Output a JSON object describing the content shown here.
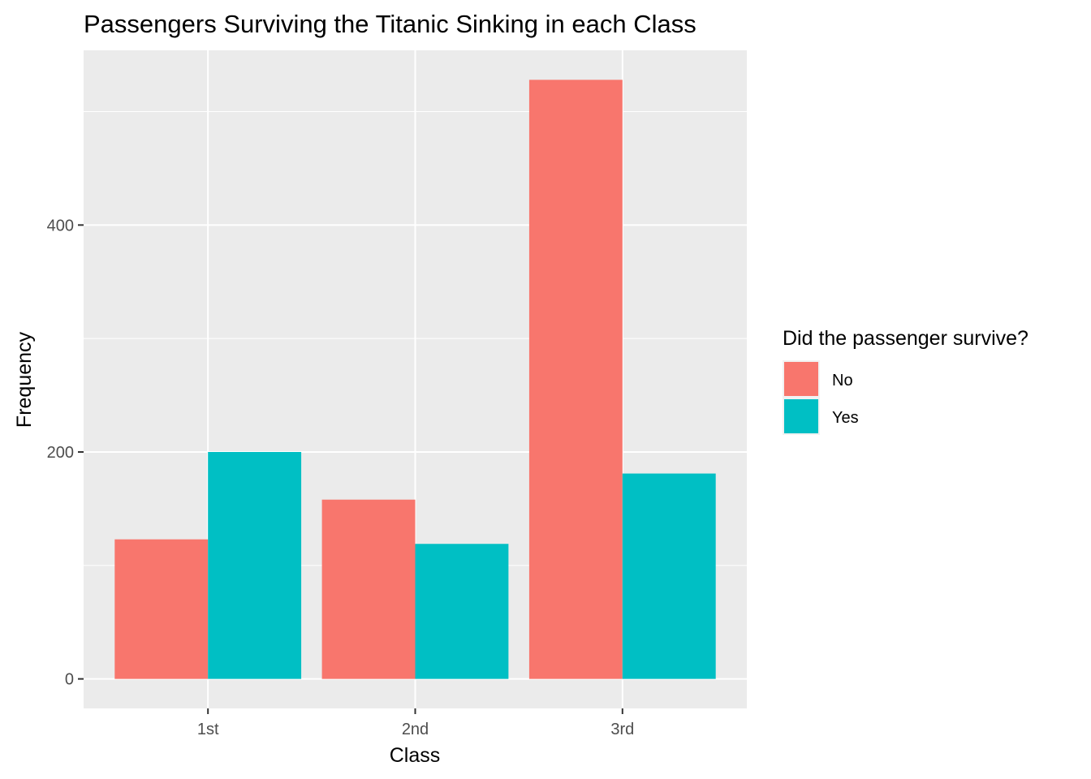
{
  "chart_data": {
    "type": "bar",
    "title": "Passengers Surviving the Titanic Sinking in each Class",
    "xlabel": "Class",
    "ylabel": "Frequency",
    "categories": [
      "1st",
      "2nd",
      "3rd"
    ],
    "series": [
      {
        "name": "No",
        "values": [
          123,
          158,
          528
        ],
        "color": "#F8766D"
      },
      {
        "name": "Yes",
        "values": [
          200,
          119,
          181
        ],
        "color": "#00BFC4"
      }
    ],
    "ylim": [
      -26,
      554
    ],
    "yticks": [
      0,
      200,
      400
    ],
    "legend": {
      "title": "Did the passenger survive?",
      "placement": "right"
    },
    "panel_background": "#EBEBEB",
    "grid": true
  }
}
